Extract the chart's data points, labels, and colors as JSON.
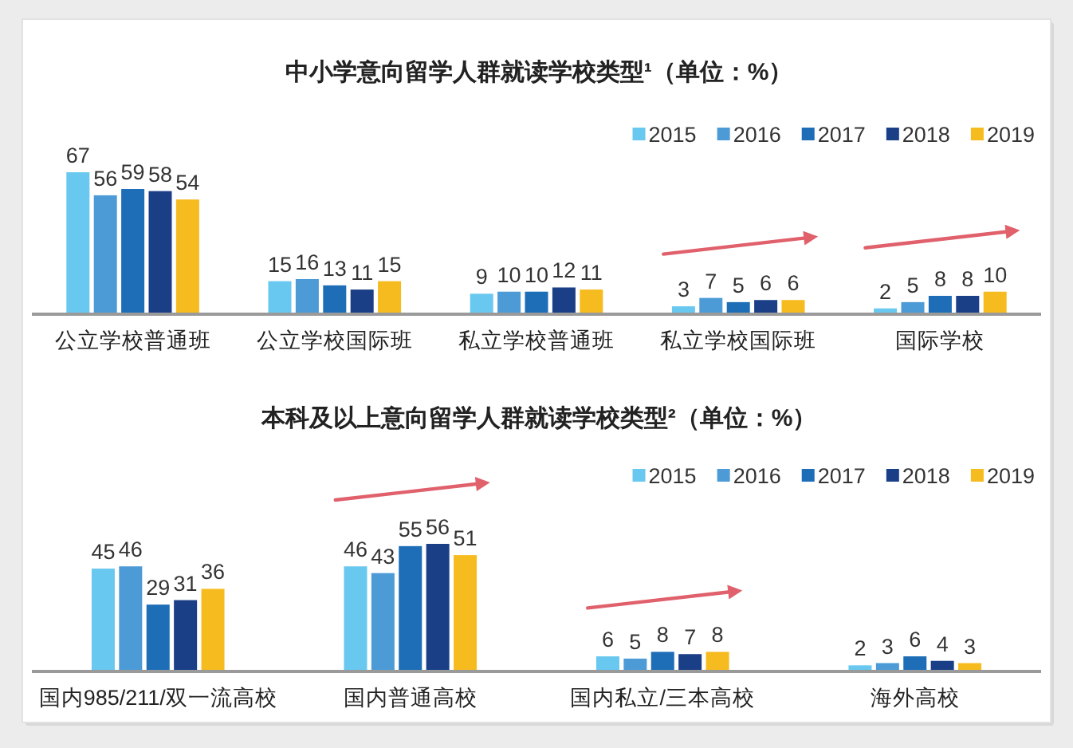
{
  "chart_data": [
    {
      "type": "bar",
      "title": "中小学意向留学人群就读学校类型¹（单位：%）",
      "categories": [
        "公立学校普通班",
        "公立学校国际班",
        "私立学校普通班",
        "私立学校国际班",
        "国际学校"
      ],
      "series": [
        {
          "name": "2015",
          "color": "#68c8ef",
          "values": [
            67,
            15,
            9,
            3,
            2
          ]
        },
        {
          "name": "2016",
          "color": "#4c9bd6",
          "values": [
            56,
            16,
            10,
            7,
            5
          ]
        },
        {
          "name": "2017",
          "color": "#1d6db7",
          "values": [
            59,
            13,
            10,
            5,
            8
          ]
        },
        {
          "name": "2018",
          "color": "#1a3f87",
          "values": [
            58,
            11,
            12,
            6,
            8
          ]
        },
        {
          "name": "2019",
          "color": "#f6bb1e",
          "values": [
            54,
            15,
            11,
            6,
            10
          ]
        }
      ],
      "data_labels": true,
      "legend": "top right"
    },
    {
      "type": "bar",
      "title": "本科及以上意向留学人群就读学校类型²（单位：%）",
      "categories": [
        "国内985/211/双一流高校",
        "国内普通高校",
        "国内私立/三本高校",
        "海外高校"
      ],
      "series": [
        {
          "name": "2015",
          "color": "#68c8ef",
          "values": [
            45,
            46,
            6,
            2
          ]
        },
        {
          "name": "2016",
          "color": "#4c9bd6",
          "values": [
            46,
            43,
            5,
            3
          ]
        },
        {
          "name": "2017",
          "color": "#1d6db7",
          "values": [
            29,
            55,
            8,
            6
          ]
        },
        {
          "name": "2018",
          "color": "#1a3f87",
          "values": [
            31,
            56,
            7,
            4
          ]
        },
        {
          "name": "2019",
          "color": "#f6bb1e",
          "values": [
            36,
            51,
            8,
            3
          ]
        }
      ],
      "data_labels": true,
      "legend": "top right"
    }
  ]
}
